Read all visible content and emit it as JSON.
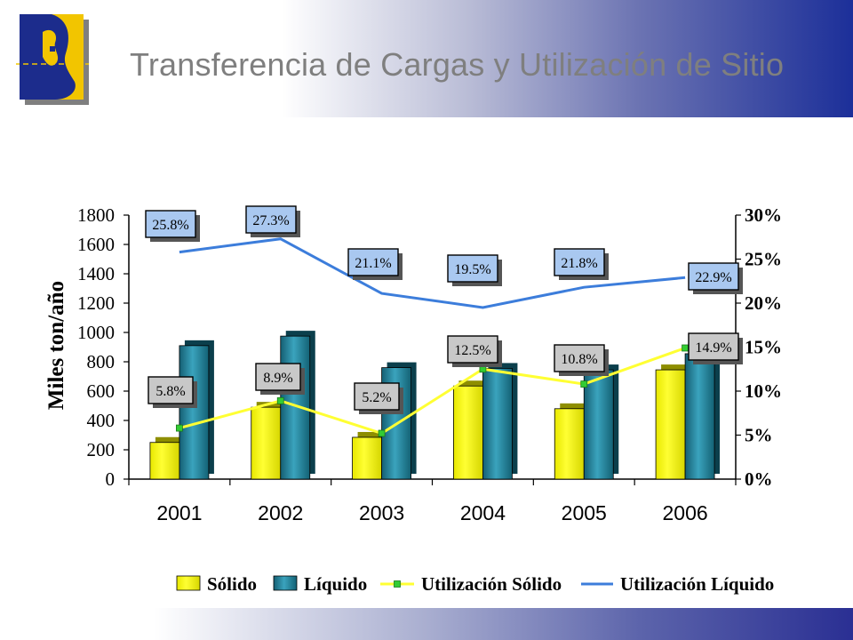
{
  "slide": {
    "title": "Transferencia de Cargas y Utilización de Sitio"
  },
  "colors": {
    "solido": "#ffff00",
    "liquido": "#1f7f96",
    "util_solido": "#ffff33",
    "util_liquido": "#3c7ddb",
    "label_box_liquido": "#a9c8f0",
    "label_box_solido": "#c8c8c8"
  },
  "chart_data": {
    "type": "bar",
    "categories": [
      "2001",
      "2002",
      "2003",
      "2004",
      "2005",
      "2006"
    ],
    "ylabel": "Miles ton/año",
    "ylim": [
      0,
      1800
    ],
    "yticks": [
      "0",
      "200",
      "400",
      "600",
      "800",
      "1000",
      "1200",
      "1400",
      "1600",
      "1800"
    ],
    "y2lim": [
      0,
      30
    ],
    "y2ticks": [
      "0%",
      "5%",
      "10%",
      "15%",
      "20%",
      "25%",
      "30%"
    ],
    "series": [
      {
        "name": "Sólido",
        "kind": "bar",
        "axis": "left",
        "values": [
          250,
          490,
          285,
          635,
          480,
          745
        ]
      },
      {
        "name": "Líquido",
        "kind": "bar",
        "axis": "left",
        "values": [
          910,
          975,
          760,
          755,
          745,
          855
        ]
      },
      {
        "name": "Utilización Sólido",
        "kind": "line",
        "axis": "right",
        "values": [
          5.8,
          8.9,
          5.2,
          12.5,
          10.8,
          14.9
        ],
        "labels": [
          "5.8%",
          "8.9%",
          "5.2%",
          "12.5%",
          "10.8%",
          "14.9%"
        ]
      },
      {
        "name": "Utilización Líquido",
        "kind": "line",
        "axis": "right",
        "values": [
          25.8,
          27.3,
          21.1,
          19.5,
          21.8,
          22.9
        ],
        "labels": [
          "25.8%",
          "27.3%",
          "21.1%",
          "19.5%",
          "21.8%",
          "22.9%"
        ]
      }
    ],
    "legend": {
      "position": "bottom",
      "items": [
        "Sólido",
        "Líquido",
        "Utilización Sólido",
        "Utilización Líquido"
      ]
    }
  }
}
